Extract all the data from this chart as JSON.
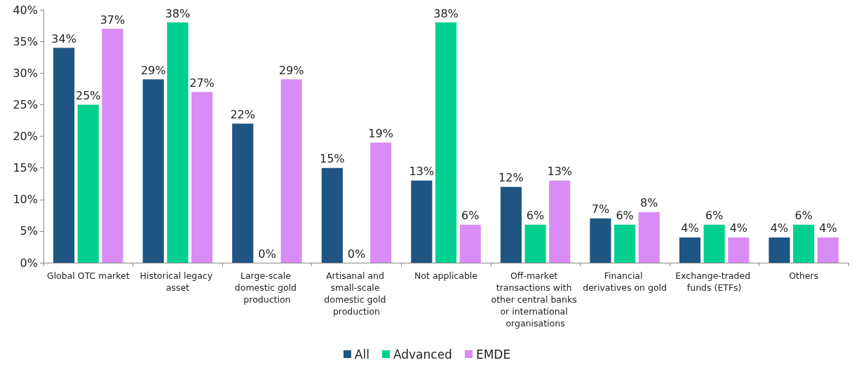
{
  "chart_data": {
    "type": "bar",
    "categories": [
      "Global OTC market",
      "Historical legacy asset",
      "Large-scale domestic gold production",
      "Artisanal and small-scale domestic gold production",
      "Not applicable",
      "Off-market transactions with other central banks or international organisations",
      "Financial derivatives on gold",
      "Exchange-traded funds (ETFs)",
      "Others"
    ],
    "series": [
      {
        "name": "All",
        "color": "#1f5582",
        "values": [
          34,
          29,
          22,
          15,
          13,
          12,
          7,
          4,
          4
        ],
        "value_labels": [
          "34%",
          "29%",
          "22%",
          "15%",
          "13%",
          "12%",
          "7%",
          "4%",
          "4%"
        ]
      },
      {
        "name": "Advanced",
        "color": "#00d08f",
        "values": [
          25,
          38,
          0,
          0,
          38,
          6,
          6,
          6,
          6
        ],
        "value_labels": [
          "25%",
          "38%",
          "0%",
          "0%",
          "38%",
          "6%",
          "6%",
          "6%",
          "6%"
        ]
      },
      {
        "name": "EMDE",
        "color": "#d98cf5",
        "values": [
          37,
          27,
          29,
          19,
          6,
          13,
          8,
          4,
          4
        ],
        "value_labels": [
          "37%",
          "27%",
          "29%",
          "19%",
          "6%",
          "13%",
          "8%",
          "4%",
          "4%"
        ]
      }
    ],
    "ylim": [
      0,
      40
    ],
    "yticks": [
      {
        "value": 0,
        "label": "0%"
      },
      {
        "value": 5,
        "label": "5%"
      },
      {
        "value": 10,
        "label": "10%"
      },
      {
        "value": 15,
        "label": "15%"
      },
      {
        "value": 20,
        "label": "20%"
      },
      {
        "value": 25,
        "label": "25%"
      },
      {
        "value": 30,
        "label": "30%"
      },
      {
        "value": 35,
        "label": "35%"
      },
      {
        "value": 40,
        "label": "40%"
      }
    ],
    "grid": false,
    "legend": "bottom"
  }
}
